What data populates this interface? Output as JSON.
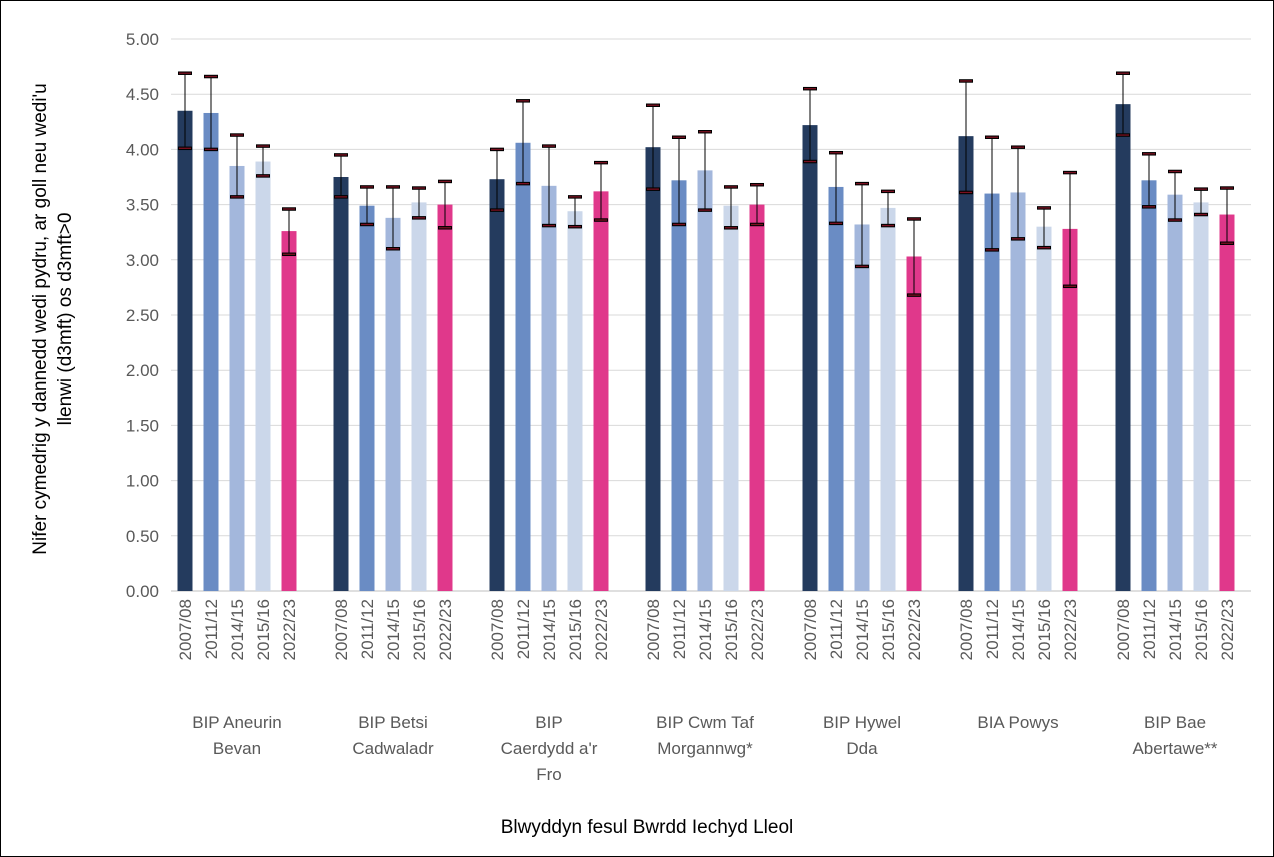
{
  "chart_data": {
    "type": "bar",
    "ylabel_lines": [
      "Nifer cymedrig y dannedd wedi pydru, ar goll neu wedi'u",
      "llenwi (d3mft) os d3mft>0"
    ],
    "xlabel": "Blwyddyn fesul Bwrdd Iechyd Lleol",
    "ylim": [
      0,
      5
    ],
    "yticks": [
      "0.00",
      "0.50",
      "1.00",
      "1.50",
      "2.00",
      "2.50",
      "3.00",
      "3.50",
      "4.00",
      "4.50",
      "5.00"
    ],
    "grid": true,
    "series_years": [
      "2007/08",
      "2011/12",
      "2014/15",
      "2015/16",
      "2022/23"
    ],
    "colors": [
      "#243b5e",
      "#6a8cc4",
      "#a3b7dc",
      "#cbd7ea",
      "#e0388b"
    ],
    "groups": [
      {
        "label_lines": [
          "BIP Aneurin",
          "Bevan"
        ],
        "values": [
          4.35,
          4.33,
          3.85,
          3.89,
          3.26
        ],
        "lower": [
          4.01,
          4.0,
          3.57,
          3.76,
          3.05
        ],
        "upper": [
          4.69,
          4.66,
          4.13,
          4.03,
          3.46
        ]
      },
      {
        "label_lines": [
          "BIP Betsi",
          "Cadwaladr"
        ],
        "values": [
          3.75,
          3.49,
          3.38,
          3.52,
          3.5
        ],
        "lower": [
          3.57,
          3.32,
          3.1,
          3.38,
          3.29
        ],
        "upper": [
          3.95,
          3.66,
          3.66,
          3.65,
          3.71
        ]
      },
      {
        "label_lines": [
          "BIP",
          "Caerdydd a'r",
          "Fro"
        ],
        "values": [
          3.73,
          4.06,
          3.67,
          3.44,
          3.62
        ],
        "lower": [
          3.45,
          3.69,
          3.31,
          3.3,
          3.36
        ],
        "upper": [
          4.0,
          4.44,
          4.03,
          3.57,
          3.88
        ]
      },
      {
        "label_lines": [
          "BIP Cwm Taf",
          "Morgannwg*"
        ],
        "values": [
          4.02,
          3.72,
          3.81,
          3.49,
          3.5
        ],
        "lower": [
          3.64,
          3.32,
          3.45,
          3.29,
          3.32
        ],
        "upper": [
          4.4,
          4.11,
          4.16,
          3.66,
          3.68
        ]
      },
      {
        "label_lines": [
          "BIP Hywel",
          "Dda"
        ],
        "values": [
          4.22,
          3.66,
          3.32,
          3.47,
          3.03
        ],
        "lower": [
          3.89,
          3.33,
          2.94,
          3.31,
          2.68
        ],
        "upper": [
          4.55,
          3.97,
          3.69,
          3.62,
          3.37
        ]
      },
      {
        "label_lines": [
          "BIA Powys"
        ],
        "values": [
          4.12,
          3.6,
          3.61,
          3.3,
          3.28
        ],
        "lower": [
          3.61,
          3.09,
          3.19,
          3.11,
          2.76
        ],
        "upper": [
          4.62,
          4.11,
          4.02,
          3.47,
          3.79
        ]
      },
      {
        "label_lines": [
          "BIP Bae",
          "Abertawe**"
        ],
        "values": [
          4.41,
          3.72,
          3.59,
          3.52,
          3.41
        ],
        "lower": [
          4.13,
          3.48,
          3.36,
          3.41,
          3.15
        ],
        "upper": [
          4.69,
          3.96,
          3.8,
          3.64,
          3.65
        ]
      }
    ]
  }
}
